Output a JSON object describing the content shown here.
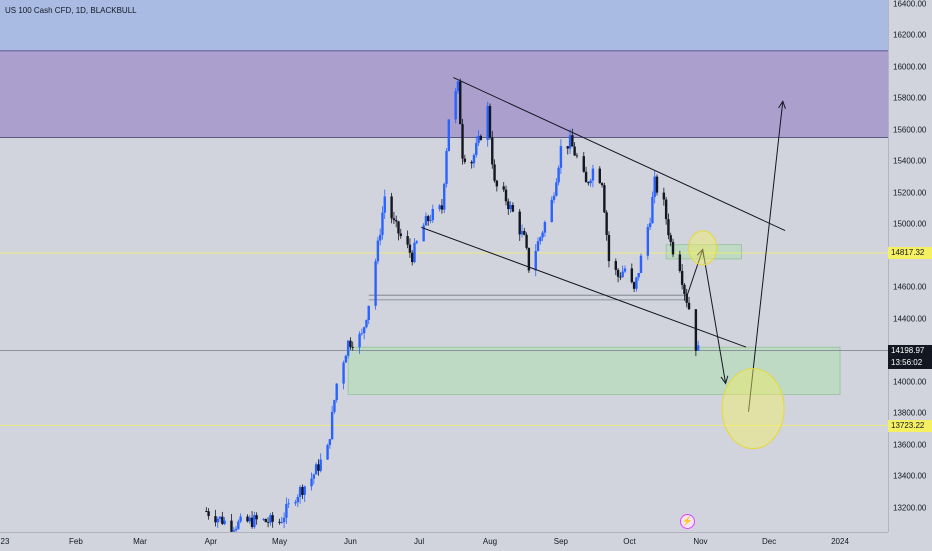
{
  "header": {
    "legend": "US 100 Cash CFD, 1D, BLACKBULL"
  },
  "colors": {
    "up": "#2962ff",
    "down": "#131722",
    "zone_blue": "#a9bbe3",
    "zone_purple": "#ab9fce",
    "zone_green": "#b9d9be",
    "highlight": "#f5ef62"
  },
  "icons": {
    "event": "lightning-icon"
  },
  "event_glyph": "⚡",
  "chart_data": {
    "type": "candlestick",
    "title": "US 100 Cash CFD, 1D, BLACKBULL",
    "ylim": [
      13100,
      16480
    ],
    "y_ticks": [
      16400,
      16200,
      16000,
      15800,
      15600,
      15400,
      15200,
      15000,
      14800,
      14600,
      14400,
      14200,
      14000,
      13800,
      13600,
      13400,
      13200
    ],
    "y_tick_labels": [
      "16400.00",
      "16200.00",
      "16000.00",
      "15800.00",
      "15600.00",
      "15400.00",
      "15200.00",
      "15000.00",
      "14800.00",
      "14600.00",
      "14400.00",
      "14200.00",
      "14000.00",
      "13800.00",
      "13600.00",
      "13400.00",
      "13200.00"
    ],
    "x_ticks": [
      {
        "label": "23",
        "date": "2023-01-01"
      },
      {
        "label": "Feb",
        "date": "2023-02-01"
      },
      {
        "label": "Mar",
        "date": "2023-03-01"
      },
      {
        "label": "Apr",
        "date": "2023-04-01"
      },
      {
        "label": "May",
        "date": "2023-05-01"
      },
      {
        "label": "Jun",
        "date": "2023-06-01"
      },
      {
        "label": "Jul",
        "date": "2023-07-01"
      },
      {
        "label": "Aug",
        "date": "2023-08-01"
      },
      {
        "label": "Sep",
        "date": "2023-09-01"
      },
      {
        "label": "Oct",
        "date": "2023-10-01"
      },
      {
        "label": "Nov",
        "date": "2023-11-01"
      },
      {
        "label": "Dec",
        "date": "2023-12-01"
      },
      {
        "label": "2024",
        "date": "2024-01-01"
      }
    ],
    "close_path": [
      [
        "2023-03-30",
        13180
      ],
      [
        "2023-04-10",
        13090
      ],
      [
        "2023-04-20",
        13120
      ],
      [
        "2023-05-01",
        13110
      ],
      [
        "2023-05-08",
        13280
      ],
      [
        "2023-05-15",
        13390
      ],
      [
        "2023-05-22",
        13570
      ],
      [
        "2023-05-26",
        13990
      ],
      [
        "2023-05-31",
        14250
      ],
      [
        "2023-06-06",
        14290
      ],
      [
        "2023-06-09",
        14500
      ],
      [
        "2023-06-13",
        14860
      ],
      [
        "2023-06-16",
        15180
      ],
      [
        "2023-06-20",
        15000
      ],
      [
        "2023-06-23",
        14920
      ],
      [
        "2023-06-28",
        14800
      ],
      [
        "2023-07-03",
        14990
      ],
      [
        "2023-07-06",
        15050
      ],
      [
        "2023-07-11",
        15100
      ],
      [
        "2023-07-14",
        15680
      ],
      [
        "2023-07-18",
        15870
      ],
      [
        "2023-07-20",
        15450
      ],
      [
        "2023-07-24",
        15400
      ],
      [
        "2023-07-27",
        15520
      ],
      [
        "2023-07-31",
        15730
      ],
      [
        "2023-08-03",
        15250
      ],
      [
        "2023-08-08",
        15160
      ],
      [
        "2023-08-11",
        15070
      ],
      [
        "2023-08-16",
        14900
      ],
      [
        "2023-08-18",
        14730
      ],
      [
        "2023-08-23",
        14920
      ],
      [
        "2023-08-28",
        15140
      ],
      [
        "2023-09-01",
        15480
      ],
      [
        "2023-09-05",
        15520
      ],
      [
        "2023-09-08",
        15420
      ],
      [
        "2023-09-12",
        15250
      ],
      [
        "2023-09-15",
        15350
      ],
      [
        "2023-09-19",
        15280
      ],
      [
        "2023-09-22",
        14770
      ],
      [
        "2023-09-26",
        14670
      ],
      [
        "2023-09-29",
        14720
      ],
      [
        "2023-10-03",
        14570
      ],
      [
        "2023-10-06",
        14780
      ],
      [
        "2023-10-10",
        15050
      ],
      [
        "2023-10-12",
        15260
      ],
      [
        "2023-10-16",
        15120
      ],
      [
        "2023-10-19",
        14880
      ],
      [
        "2023-10-23",
        14740
      ],
      [
        "2023-10-25",
        14580
      ],
      [
        "2023-10-27",
        14470
      ],
      [
        "2023-10-30",
        14230
      ],
      [
        "2023-10-31",
        14199
      ]
    ],
    "zones": [
      {
        "y1": 16480,
        "y2": 16100,
        "color": "#a9bbe3"
      },
      {
        "y1": 16100,
        "y2": 15550,
        "color": "#ab9fce"
      },
      {
        "y1": 14220,
        "y2": 13920,
        "x1": "2023-05-31",
        "x2": "2024-01-01",
        "color": "#b9d9be"
      },
      {
        "y1": 14870,
        "y2": 14780,
        "x1": "2023-10-17",
        "x2": "2023-11-19",
        "color": "#b9d9be"
      }
    ],
    "h_lines": [
      {
        "y": 14198.97,
        "color": "#787b86"
      },
      {
        "y": 14817.32,
        "color": "#f5ef62"
      },
      {
        "y": 13723.22,
        "color": "#f5ef62"
      },
      {
        "y": 14550,
        "x1": "2023-06-09",
        "x2": "2023-10-26",
        "color": "#787b86"
      },
      {
        "y": 14520,
        "x1": "2023-06-09",
        "x2": "2023-10-26",
        "color": "#787b86"
      }
    ],
    "trendlines": [
      [
        [
          "2023-07-16",
          15930
        ],
        [
          "2023-12-08",
          14960
        ]
      ],
      [
        [
          "2023-07-02",
          14980
        ],
        [
          "2023-11-21",
          14220
        ]
      ],
      [
        [
          "2023-10-26",
          14540
        ],
        [
          "2023-11-02",
          14840
        ]
      ],
      [
        [
          "2023-11-02",
          14840
        ],
        [
          "2023-11-12",
          13990
        ]
      ],
      [
        [
          "2023-11-22",
          13810
        ],
        [
          "2023-12-07",
          15780
        ]
      ]
    ],
    "ellipses": [
      {
        "cx": "2023-11-02",
        "cy": 14850,
        "rx": 4,
        "ry": 70
      },
      {
        "cx": "2023-11-24",
        "cy": 13830,
        "rx": 10,
        "ry": 270
      }
    ],
    "price_labels": [
      {
        "value": 14817.32,
        "text": "14817.32",
        "style": "yellow"
      },
      {
        "value": 14198.97,
        "text": "14198.97",
        "style": "dark"
      },
      {
        "value": 13723.22,
        "text": "13723.22",
        "style": "yellow"
      }
    ],
    "countdown": "13:56:02"
  }
}
